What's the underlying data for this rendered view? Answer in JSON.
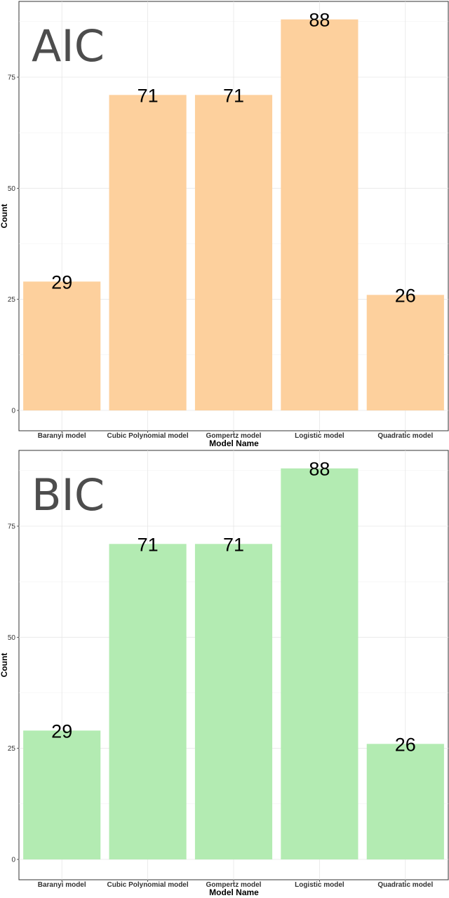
{
  "chart_data": [
    {
      "type": "bar",
      "title": "AIC",
      "xlabel": "Model Name",
      "ylabel": "Count",
      "categories": [
        "Baranyi model",
        "Cubic Polynomial model",
        "Gompertz model",
        "Logistic model",
        "Quadratic model"
      ],
      "values": [
        29,
        71,
        71,
        88,
        26
      ],
      "ylim": [
        0,
        90
      ],
      "yticks": [
        0,
        25,
        50,
        75
      ],
      "bar_color": "#fdd09d",
      "grid": true,
      "legend": "none"
    },
    {
      "type": "bar",
      "title": "BIC",
      "xlabel": "Model Name",
      "ylabel": "Count",
      "categories": [
        "Baranyi model",
        "Cubic Polynomial model",
        "Gompertz model",
        "Logistic model",
        "Quadratic model"
      ],
      "values": [
        29,
        71,
        71,
        88,
        26
      ],
      "ylim": [
        0,
        90
      ],
      "yticks": [
        0,
        25,
        50,
        75
      ],
      "bar_color": "#b3ebb2",
      "grid": true,
      "legend": "none"
    }
  ]
}
